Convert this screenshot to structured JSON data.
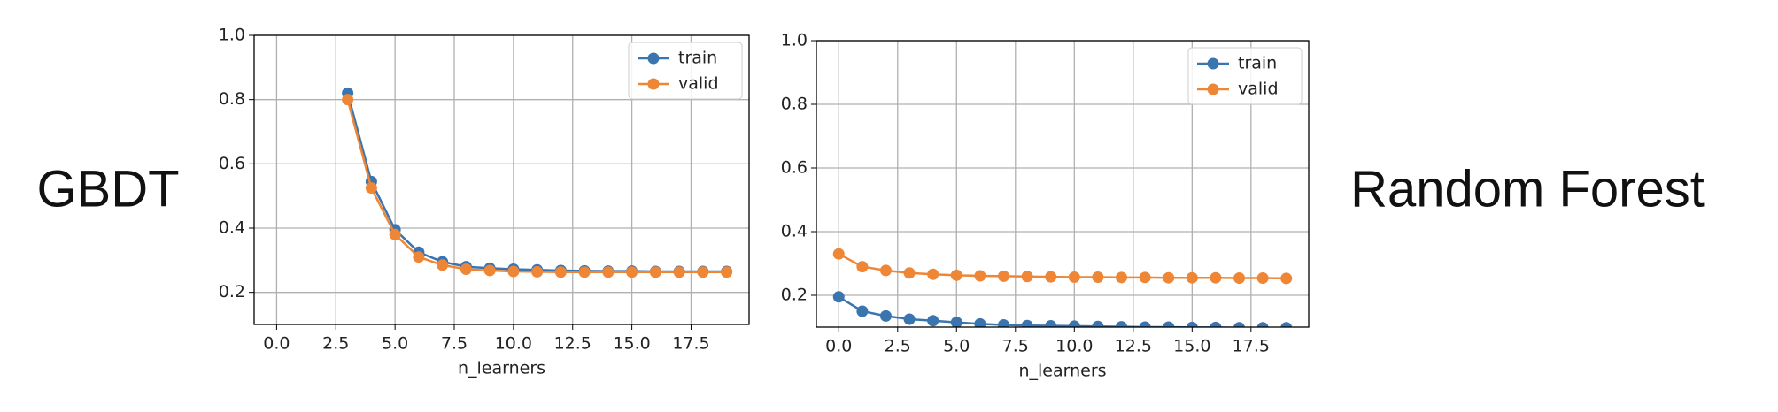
{
  "chart_data": [
    {
      "type": "line",
      "title": "GBDT",
      "x_label": "n_learners",
      "x": [
        3,
        4,
        5,
        6,
        7,
        8,
        9,
        10,
        11,
        12,
        13,
        14,
        15,
        16,
        17,
        18,
        19
      ],
      "series": [
        {
          "name": "train",
          "color": "#3a75b0",
          "values": [
            0.82,
            0.545,
            0.395,
            0.325,
            0.295,
            0.28,
            0.275,
            0.272,
            0.27,
            0.268,
            0.267,
            0.266,
            0.266,
            0.265,
            0.265,
            0.265,
            0.265
          ]
        },
        {
          "name": "valid",
          "color": "#ef8636",
          "values": [
            0.8,
            0.525,
            0.38,
            0.31,
            0.285,
            0.272,
            0.268,
            0.265,
            0.264,
            0.263,
            0.263,
            0.263,
            0.263,
            0.263,
            0.263,
            0.263,
            0.263
          ]
        }
      ],
      "xlim": [
        -0.95,
        19.95
      ],
      "ylim": [
        0.1,
        1.0
      ],
      "xticks": [
        {
          "value": 0,
          "label": "0.0"
        },
        2.5,
        {
          "value": 5,
          "label": "5.0"
        },
        7.5,
        {
          "value": 10,
          "label": "10.0"
        },
        12.5,
        {
          "value": 15,
          "label": "15.0"
        },
        17.5
      ],
      "yticks": [
        0.2,
        0.4,
        0.6,
        0.8,
        {
          "value": 1,
          "label": "1.0"
        }
      ],
      "grid": true,
      "legend": "upper right",
      "title_side": "left"
    },
    {
      "type": "line",
      "title": "Random Forest",
      "x_label": "n_learners",
      "x": [
        0,
        1,
        2,
        3,
        4,
        5,
        6,
        7,
        8,
        9,
        10,
        11,
        12,
        13,
        14,
        15,
        16,
        17,
        18,
        19
      ],
      "series": [
        {
          "name": "train",
          "color": "#3a75b0",
          "values": [
            0.195,
            0.15,
            0.135,
            0.125,
            0.12,
            0.115,
            0.11,
            0.107,
            0.105,
            0.104,
            0.103,
            0.102,
            0.101,
            0.1,
            0.1,
            0.099,
            0.099,
            0.098,
            0.098,
            0.098
          ]
        },
        {
          "name": "valid",
          "color": "#ef8636",
          "values": [
            0.33,
            0.29,
            0.278,
            0.27,
            0.266,
            0.263,
            0.261,
            0.26,
            0.259,
            0.258,
            0.257,
            0.257,
            0.256,
            0.256,
            0.255,
            0.255,
            0.255,
            0.254,
            0.254,
            0.253
          ]
        }
      ],
      "xlim": [
        -0.95,
        19.95
      ],
      "ylim": [
        0.1,
        1.0
      ],
      "xticks": [
        {
          "value": 0,
          "label": "0.0"
        },
        2.5,
        {
          "value": 5,
          "label": "5.0"
        },
        7.5,
        {
          "value": 10,
          "label": "10.0"
        },
        12.5,
        {
          "value": 15,
          "label": "15.0"
        },
        17.5
      ],
      "yticks": [
        0.2,
        0.4,
        0.6,
        0.8,
        {
          "value": 1,
          "label": "1.0"
        }
      ],
      "grid": true,
      "legend": "upper right",
      "title_side": "right"
    }
  ]
}
